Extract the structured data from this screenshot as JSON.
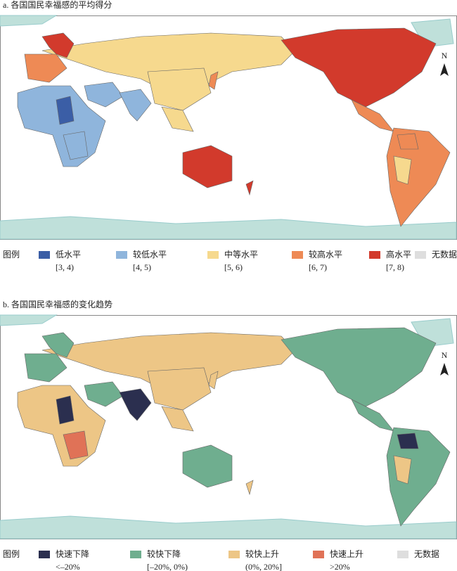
{
  "panel_a": {
    "title": "a. 各国国民幸福感的平均得分",
    "legend_title": "图例",
    "north": "N",
    "legend": [
      {
        "label": "低水平",
        "range": "[3, 4)",
        "color": "#3b5ea6"
      },
      {
        "label": "较低水平",
        "range": "[4, 5)",
        "color": "#8fb5dc"
      },
      {
        "label": "中等水平",
        "range": "[5, 6)",
        "color": "#f6d98e"
      },
      {
        "label": "较高水平",
        "range": "[6, 7)",
        "color": "#ee8a55"
      },
      {
        "label": "高水平",
        "range": "[7, 8)",
        "color": "#d23a2c"
      },
      {
        "label": "无数据",
        "color": "#dedede"
      }
    ]
  },
  "panel_b": {
    "title": "b. 各国国民幸福感的变化趋势",
    "legend_title": "图例",
    "north": "N",
    "legend": [
      {
        "label": "快速下降",
        "range": "<–20%",
        "color": "#2b2f4f"
      },
      {
        "label": "较快下降",
        "range": "[–20%, 0%)",
        "color": "#6fae8f"
      },
      {
        "label": "较快上升",
        "range": "(0%, 20%]",
        "color": "#edc686"
      },
      {
        "label": "快速上升",
        "range": ">20%",
        "color": "#e07257"
      },
      {
        "label": "无数据",
        "color": "#dedede"
      }
    ]
  }
}
